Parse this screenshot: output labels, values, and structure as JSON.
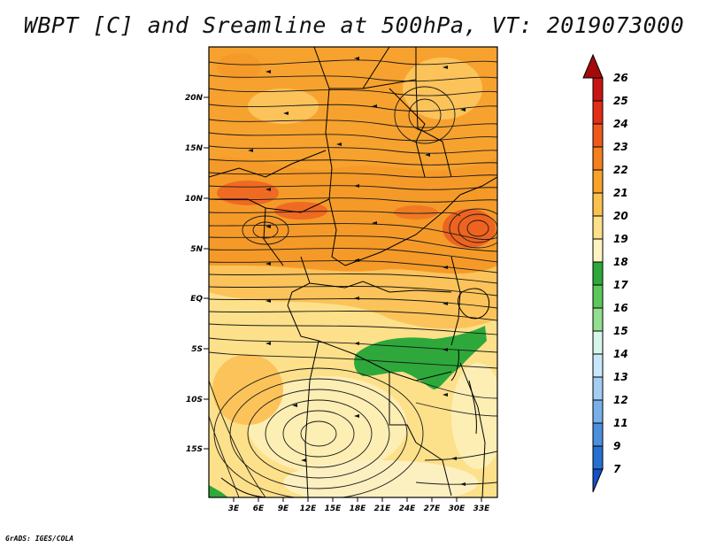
{
  "title": "WBPT [C] and Sreamline at 500hPa, VT: 2019073000",
  "credit": "GrADS: IGES/COLA",
  "map": {
    "lat_labels": [
      "20N",
      "15N",
      "10N",
      "5N",
      "EQ",
      "5S",
      "10S",
      "15S"
    ],
    "lon_labels": [
      "3E",
      "6E",
      "9E",
      "12E",
      "15E",
      "18E",
      "21E",
      "24E",
      "27E",
      "30E",
      "33E"
    ]
  },
  "colorbar": {
    "labels": [
      "26",
      "25",
      "24",
      "23",
      "22",
      "21",
      "20",
      "19",
      "18",
      "17",
      "16",
      "15",
      "14",
      "13",
      "12",
      "11",
      "9",
      "7"
    ],
    "colors": [
      "#a50a0a",
      "#c81414",
      "#e32d16",
      "#ef5a1c",
      "#f57f1e",
      "#f8a22c",
      "#fbc150",
      "#fde08a",
      "#fdf4c2",
      "#2ea83a",
      "#5cc85a",
      "#93df90",
      "#d6f6ea",
      "#c8e8fa",
      "#a4cdf4",
      "#7ab0ea",
      "#4b8fde",
      "#2670d2",
      "#1450c8"
    ]
  }
}
